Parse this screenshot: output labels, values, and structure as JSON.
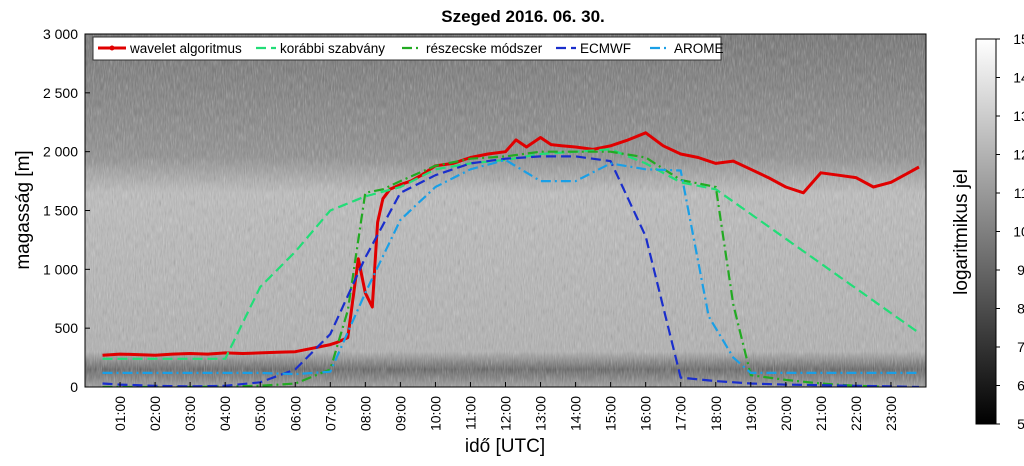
{
  "chart_data": {
    "type": "line",
    "title": "Szeged 2016. 06. 30.",
    "xlabel": "idő [UTC]",
    "ylabel": "magasság [m]",
    "ylim": [
      0,
      3000
    ],
    "xlim": [
      0,
      24
    ],
    "x_unit": "hour UTC",
    "x_ticks": [
      "01:00",
      "02:00",
      "03:00",
      "04:00",
      "05:00",
      "06:00",
      "07:00",
      "08:00",
      "09:00",
      "10:00",
      "11:00",
      "12:00",
      "13:00",
      "14:00",
      "15:00",
      "16:00",
      "17:00",
      "18:00",
      "19:00",
      "20:00",
      "21:00",
      "22:00",
      "23:00"
    ],
    "y_ticks": [
      "0",
      "500",
      "1 000",
      "1 500",
      "2 000",
      "2 500",
      "3 000"
    ],
    "y_tick_values": [
      0,
      500,
      1000,
      1500,
      2000,
      2500,
      3000
    ],
    "legend_position": "top-left, horizontal",
    "background": "grayscale ceilometer backscatter image (logaritmikus jel)",
    "colorbar": {
      "label": "logaritmikus jel",
      "range": [
        5,
        15
      ],
      "ticks": [
        "5",
        "6",
        "7",
        "8",
        "9",
        "10",
        "11",
        "12",
        "13",
        "14",
        "15"
      ]
    },
    "series": [
      {
        "name": "wavelet algoritmus",
        "color": "#e00000",
        "style": "solid",
        "x": [
          0.5,
          1,
          1.5,
          2,
          2.5,
          3,
          3.5,
          4,
          4.5,
          5,
          5.5,
          6,
          6.5,
          7,
          7.2,
          7.5,
          7.8,
          8,
          8.2,
          8.35,
          8.5,
          8.7,
          9,
          9.3,
          9.6,
          10,
          10.5,
          11,
          11.5,
          12,
          12.3,
          12.6,
          13,
          13.3,
          13.6,
          14,
          14.5,
          15,
          15.5,
          16,
          16.5,
          17,
          17.5,
          18,
          18.5,
          19,
          19.5,
          20,
          20.5,
          21,
          21.5,
          22,
          22.5,
          23,
          23.5,
          23.8
        ],
        "values": [
          270,
          280,
          275,
          270,
          280,
          285,
          280,
          290,
          285,
          290,
          295,
          300,
          330,
          360,
          380,
          420,
          1090,
          800,
          680,
          1400,
          1600,
          1680,
          1720,
          1750,
          1800,
          1880,
          1900,
          1950,
          1980,
          2000,
          2100,
          2040,
          2120,
          2060,
          2050,
          2040,
          2020,
          2050,
          2100,
          2160,
          2050,
          1980,
          1950,
          1900,
          1920,
          1850,
          1780,
          1700,
          1650,
          1820,
          1800,
          1780,
          1700,
          1740,
          1820,
          1870
        ]
      },
      {
        "name": "korábbi szabvány",
        "color": "#22dd77",
        "style": "dashed",
        "x": [
          0.5,
          4,
          5,
          6,
          7,
          8,
          9,
          10,
          11,
          12,
          13,
          14,
          15,
          16,
          17,
          18,
          23.8
        ],
        "values": [
          240,
          240,
          850,
          1150,
          1500,
          1620,
          1700,
          1850,
          1900,
          1930,
          1980,
          2000,
          2020,
          1900,
          1740,
          1680,
          460
        ]
      },
      {
        "name": "részecske módszer",
        "color": "#22aa22",
        "style": "dashdot",
        "x": [
          0.5,
          3,
          4,
          5,
          6,
          7,
          7.5,
          8,
          8.5,
          9,
          10,
          11,
          12,
          13,
          14,
          15,
          16,
          17,
          18,
          18.5,
          19,
          20,
          21,
          22,
          23
        ],
        "values": [
          0,
          0,
          5,
          10,
          30,
          150,
          650,
          1650,
          1680,
          1750,
          1880,
          1940,
          1960,
          2000,
          2000,
          2000,
          1950,
          1760,
          1700,
          700,
          100,
          60,
          30,
          10,
          0
        ]
      },
      {
        "name": "ECMWF",
        "color": "#1a2ecc",
        "style": "dashed",
        "x": [
          0.5,
          1,
          2,
          3,
          4,
          5,
          6,
          7,
          8,
          9,
          10,
          11,
          12,
          13,
          14,
          15,
          16,
          17,
          18,
          19,
          20,
          21,
          22,
          23,
          23.8
        ],
        "values": [
          30,
          20,
          10,
          5,
          10,
          40,
          150,
          450,
          1100,
          1650,
          1800,
          1900,
          1940,
          1960,
          1960,
          1920,
          1280,
          80,
          50,
          30,
          20,
          15,
          10,
          5,
          0
        ]
      },
      {
        "name": "AROME",
        "color": "#1a9fe6",
        "style": "dashdot",
        "x": [
          0.5,
          1,
          2,
          3,
          4,
          5,
          6,
          7,
          8,
          9,
          10,
          11,
          12,
          13,
          14,
          15,
          16,
          17,
          17.8,
          18.5,
          19,
          20,
          21,
          22,
          23,
          23.8
        ],
        "values": [
          120,
          120,
          120,
          120,
          120,
          120,
          110,
          130,
          800,
          1420,
          1700,
          1850,
          1930,
          1750,
          1750,
          1900,
          1850,
          1840,
          600,
          250,
          120,
          120,
          120,
          120,
          120,
          120
        ]
      }
    ]
  }
}
